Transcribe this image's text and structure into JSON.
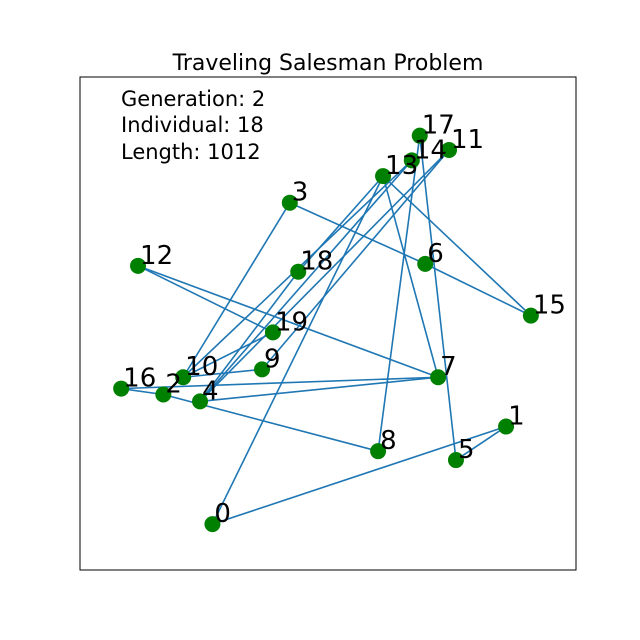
{
  "chart_data": {
    "type": "scatter",
    "title": "Traveling Salesman Problem",
    "info": {
      "generation": "Generation: 2",
      "individual": "Individual: 18",
      "length": "Length: 1012"
    },
    "xlim": [
      0,
      100
    ],
    "ylim": [
      0,
      100
    ],
    "grid": false,
    "colors": {
      "route": "#1f77b4",
      "node": "#008000",
      "frame": "#000000"
    },
    "nodes": [
      {
        "id": "0",
        "x": 26.7,
        "y": 9.3
      },
      {
        "id": "1",
        "x": 85.9,
        "y": 29.1
      },
      {
        "id": "2",
        "x": 16.8,
        "y": 35.6
      },
      {
        "id": "3",
        "x": 42.3,
        "y": 74.5
      },
      {
        "id": "4",
        "x": 24.2,
        "y": 34.2
      },
      {
        "id": "5",
        "x": 75.8,
        "y": 22.3
      },
      {
        "id": "6",
        "x": 69.6,
        "y": 62.1
      },
      {
        "id": "7",
        "x": 72.2,
        "y": 39.1
      },
      {
        "id": "8",
        "x": 60.1,
        "y": 24.1
      },
      {
        "id": "9",
        "x": 36.7,
        "y": 40.7
      },
      {
        "id": "10",
        "x": 20.8,
        "y": 39.1
      },
      {
        "id": "11",
        "x": 74.4,
        "y": 85.2
      },
      {
        "id": "12",
        "x": 11.7,
        "y": 61.7
      },
      {
        "id": "13",
        "x": 61.1,
        "y": 79.9
      },
      {
        "id": "14",
        "x": 66.9,
        "y": 83.1
      },
      {
        "id": "15",
        "x": 90.9,
        "y": 51.6
      },
      {
        "id": "16",
        "x": 8.3,
        "y": 36.8
      },
      {
        "id": "17",
        "x": 68.5,
        "y": 88.1
      },
      {
        "id": "18",
        "x": 44.0,
        "y": 60.5
      },
      {
        "id": "19",
        "x": 38.9,
        "y": 48.2
      }
    ],
    "route": [
      "0",
      "1",
      "5",
      "17",
      "8",
      "2",
      "16",
      "7",
      "4",
      "11",
      "9",
      "10",
      "14",
      "4",
      "18",
      "13",
      "7",
      "12",
      "19",
      "10",
      "3",
      "6",
      "15",
      "13",
      "0"
    ]
  }
}
